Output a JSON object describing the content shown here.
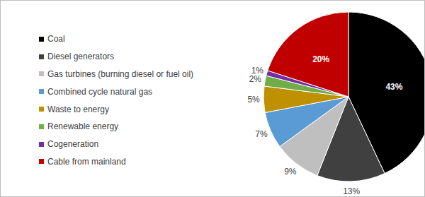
{
  "chart_data": {
    "type": "pie",
    "categories": [
      "Coal",
      "Diesel generators",
      "Gas turbines (burning diesel or fuel oil)",
      "Combined cycle natural gas",
      "Waste to energy",
      "Renewable energy",
      "Cogeneration",
      "Cable from mainland"
    ],
    "values": [
      43,
      13,
      9,
      7,
      5,
      2,
      1,
      20
    ],
    "value_labels": [
      "43%",
      "13%",
      "9%",
      "7%",
      "5%",
      "2%",
      "1%",
      "20%"
    ],
    "colors": [
      "#000000",
      "#404040",
      "#bfbfbf",
      "#5b9bd5",
      "#bf9000",
      "#70ad47",
      "#7030a0",
      "#c00000"
    ],
    "data_labels": true,
    "legend": "left"
  }
}
